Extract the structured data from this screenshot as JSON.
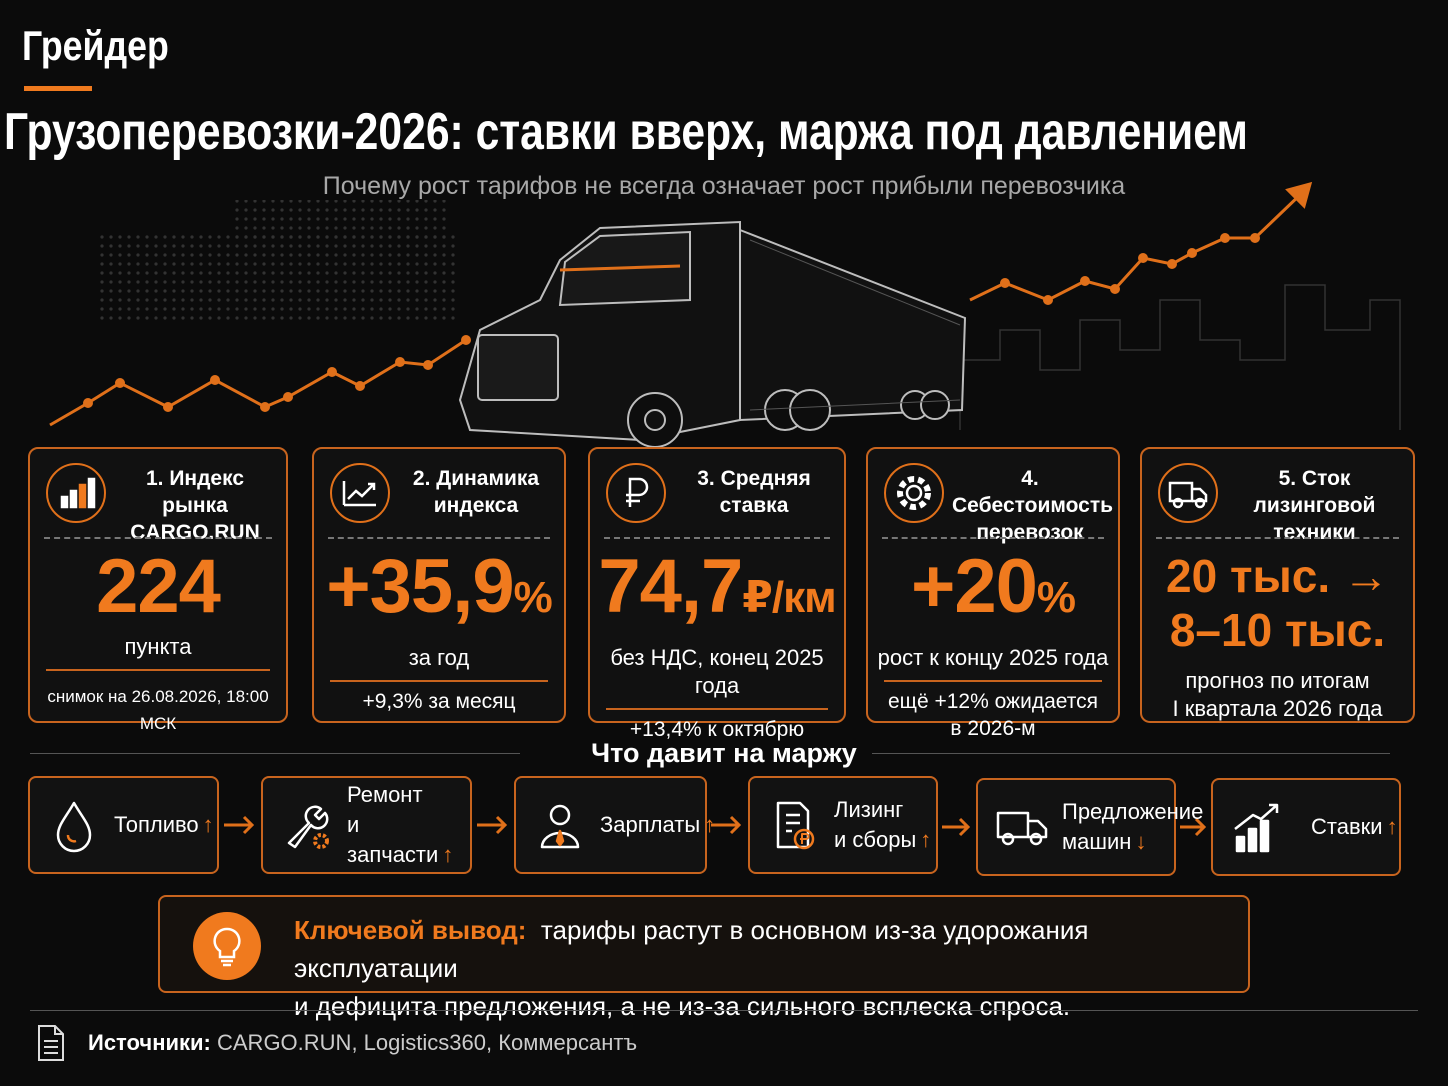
{
  "header": {
    "brand": "Грейдер",
    "title": "Грузоперевозки-2026: ставки вверх, маржа под давлением",
    "subtitle": "Почему рост тарифов не всегда означает рост прибыли перевозчика"
  },
  "cards": [
    {
      "title_lines": [
        "1. Индекс рынка",
        "CARGO.RUN"
      ],
      "value": "224",
      "caption_lines": [
        "пункта"
      ],
      "note_lines": [
        "снимок на 26.08.2026, 18:00 МСК"
      ]
    },
    {
      "title_lines": [
        "2. Динамика",
        "индекса"
      ],
      "value": "+35,9",
      "unit": "%",
      "caption_lines": [
        "за год"
      ],
      "note_lines": [
        "+9,3% за месяц"
      ]
    },
    {
      "title_lines": [
        "3. Средняя",
        "ставка"
      ],
      "value": "74,7",
      "unit": "₽/км",
      "caption_lines": [
        "без НДС, конец 2025 года"
      ],
      "note_lines": [
        "+13,4% к октябрю"
      ]
    },
    {
      "title_lines": [
        "4. Себестоимость",
        "перевозок"
      ],
      "value": "+20",
      "unit": "%",
      "caption_lines": [
        "рост к концу 2025 года"
      ],
      "note_lines": [
        "ещё +12% ожидается",
        "в 2026-м"
      ]
    },
    {
      "title_lines": [
        "5. Сток лизинговой",
        "техники"
      ],
      "value_lines": [
        "20 тыс. →",
        "8–10 тыс."
      ],
      "caption_lines": [
        "прогноз по итогам",
        "I квартала 2026 года"
      ]
    }
  ],
  "factors": {
    "title": "Что давит на маржу",
    "items": [
      {
        "label_lines": [
          "Топливо"
        ],
        "trend": "↑"
      },
      {
        "label_lines": [
          "Ремонт",
          "и запчасти"
        ],
        "trend": "↑"
      },
      {
        "label_lines": [
          "Зарплаты"
        ],
        "trend": "↑"
      },
      {
        "label_lines": [
          "Лизинг",
          "и сборы"
        ],
        "trend": "↑"
      },
      {
        "label_lines": [
          "Предложение",
          "машин"
        ],
        "trend": "↓"
      },
      {
        "label_lines": [
          "Ставки"
        ],
        "trend": "↑"
      }
    ]
  },
  "conclusion": {
    "label": "Ключевой вывод:",
    "lines": [
      "тарифы растут в основном из-за удорожания эксплуатации",
      "и дефицита предложения, а не из-за сильного всплеска спроса."
    ]
  },
  "footer": {
    "label": "Источники:",
    "text": "CARGO.RUN, Logistics360, Коммерсантъ"
  }
}
